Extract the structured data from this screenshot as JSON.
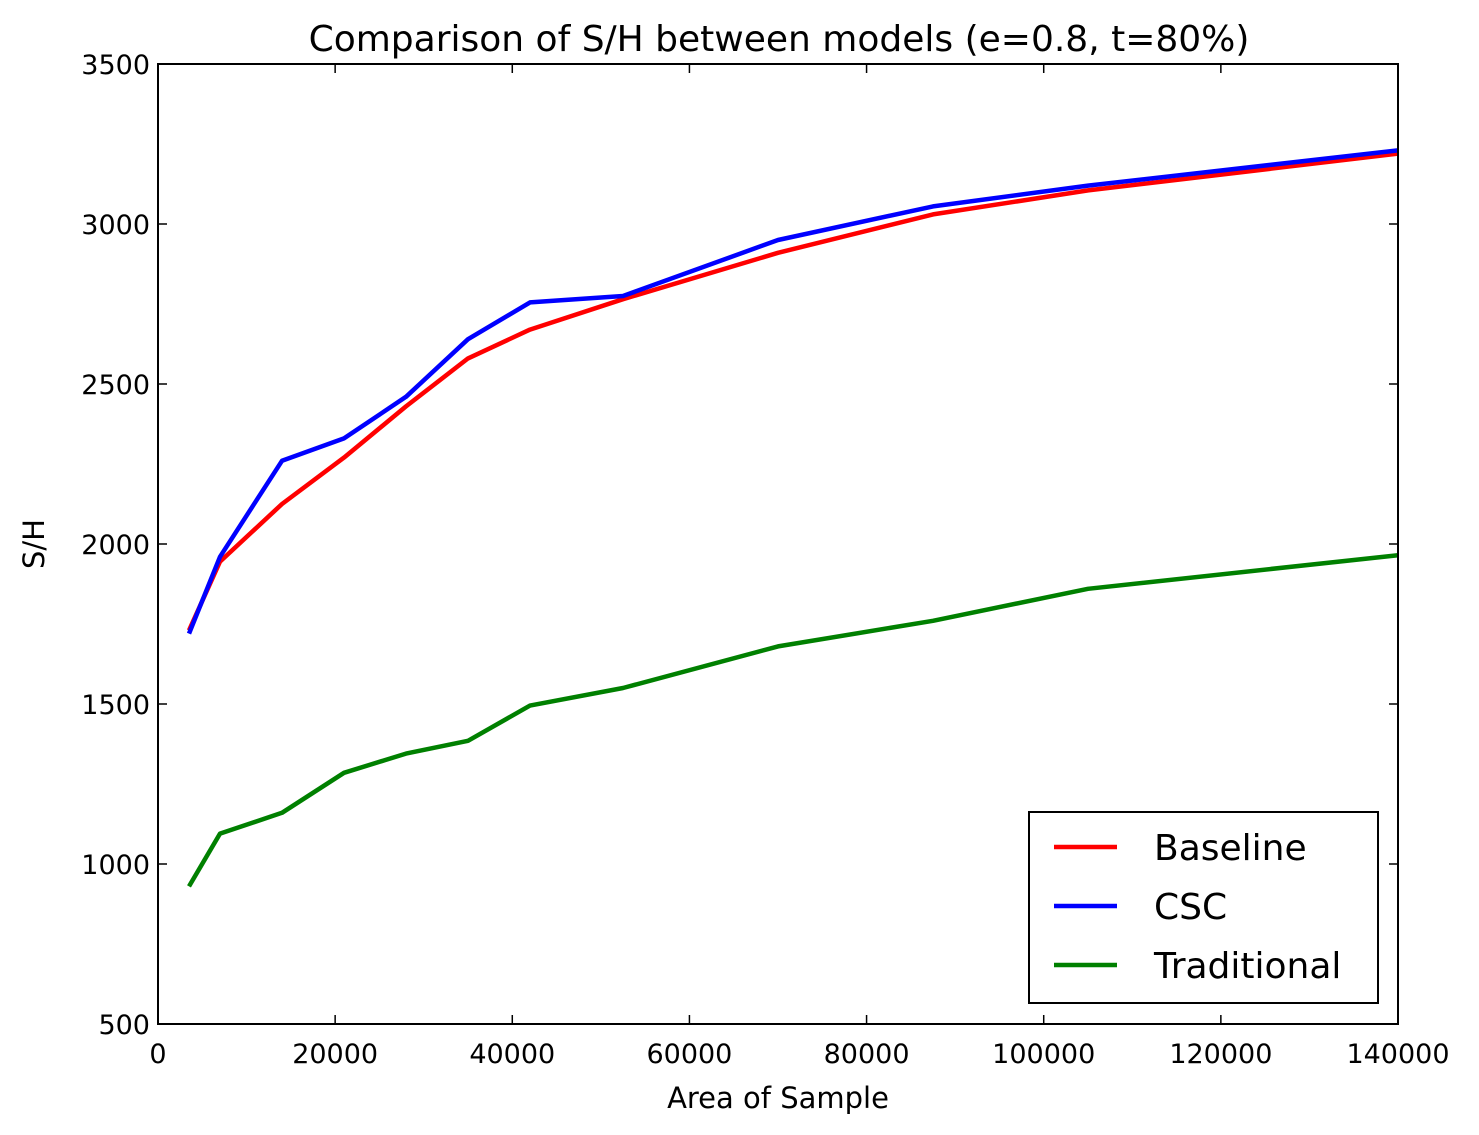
{
  "chart_data": {
    "type": "line",
    "title": "Comparison of S/H between models (e=0.8, t=80%)",
    "xlabel": "Area of Sample",
    "ylabel": "S/H",
    "xlim": [
      0,
      140000
    ],
    "ylim": [
      500,
      3500
    ],
    "xticks": [
      0,
      20000,
      40000,
      60000,
      80000,
      100000,
      120000,
      140000
    ],
    "yticks": [
      500,
      1000,
      1500,
      2000,
      2500,
      3000,
      3500
    ],
    "grid": false,
    "legend_position": "lower-right",
    "x": [
      3500,
      7000,
      14000,
      21000,
      28000,
      35000,
      42000,
      52500,
      70000,
      87500,
      105000,
      140000
    ],
    "series": [
      {
        "name": "Baseline",
        "color": "#ff0000",
        "values": [
          1730,
          1945,
          2125,
          2270,
          2430,
          2580,
          2670,
          2765,
          2910,
          3030,
          3105,
          3220
        ]
      },
      {
        "name": "CSC",
        "color": "#0000ff",
        "values": [
          1720,
          1960,
          2260,
          2330,
          2460,
          2640,
          2755,
          2775,
          2950,
          3055,
          3120,
          3230
        ]
      },
      {
        "name": "Traditional",
        "color": "#008000",
        "values": [
          930,
          1095,
          1160,
          1285,
          1345,
          1385,
          1495,
          1550,
          1680,
          1760,
          1860,
          1965
        ]
      }
    ]
  }
}
